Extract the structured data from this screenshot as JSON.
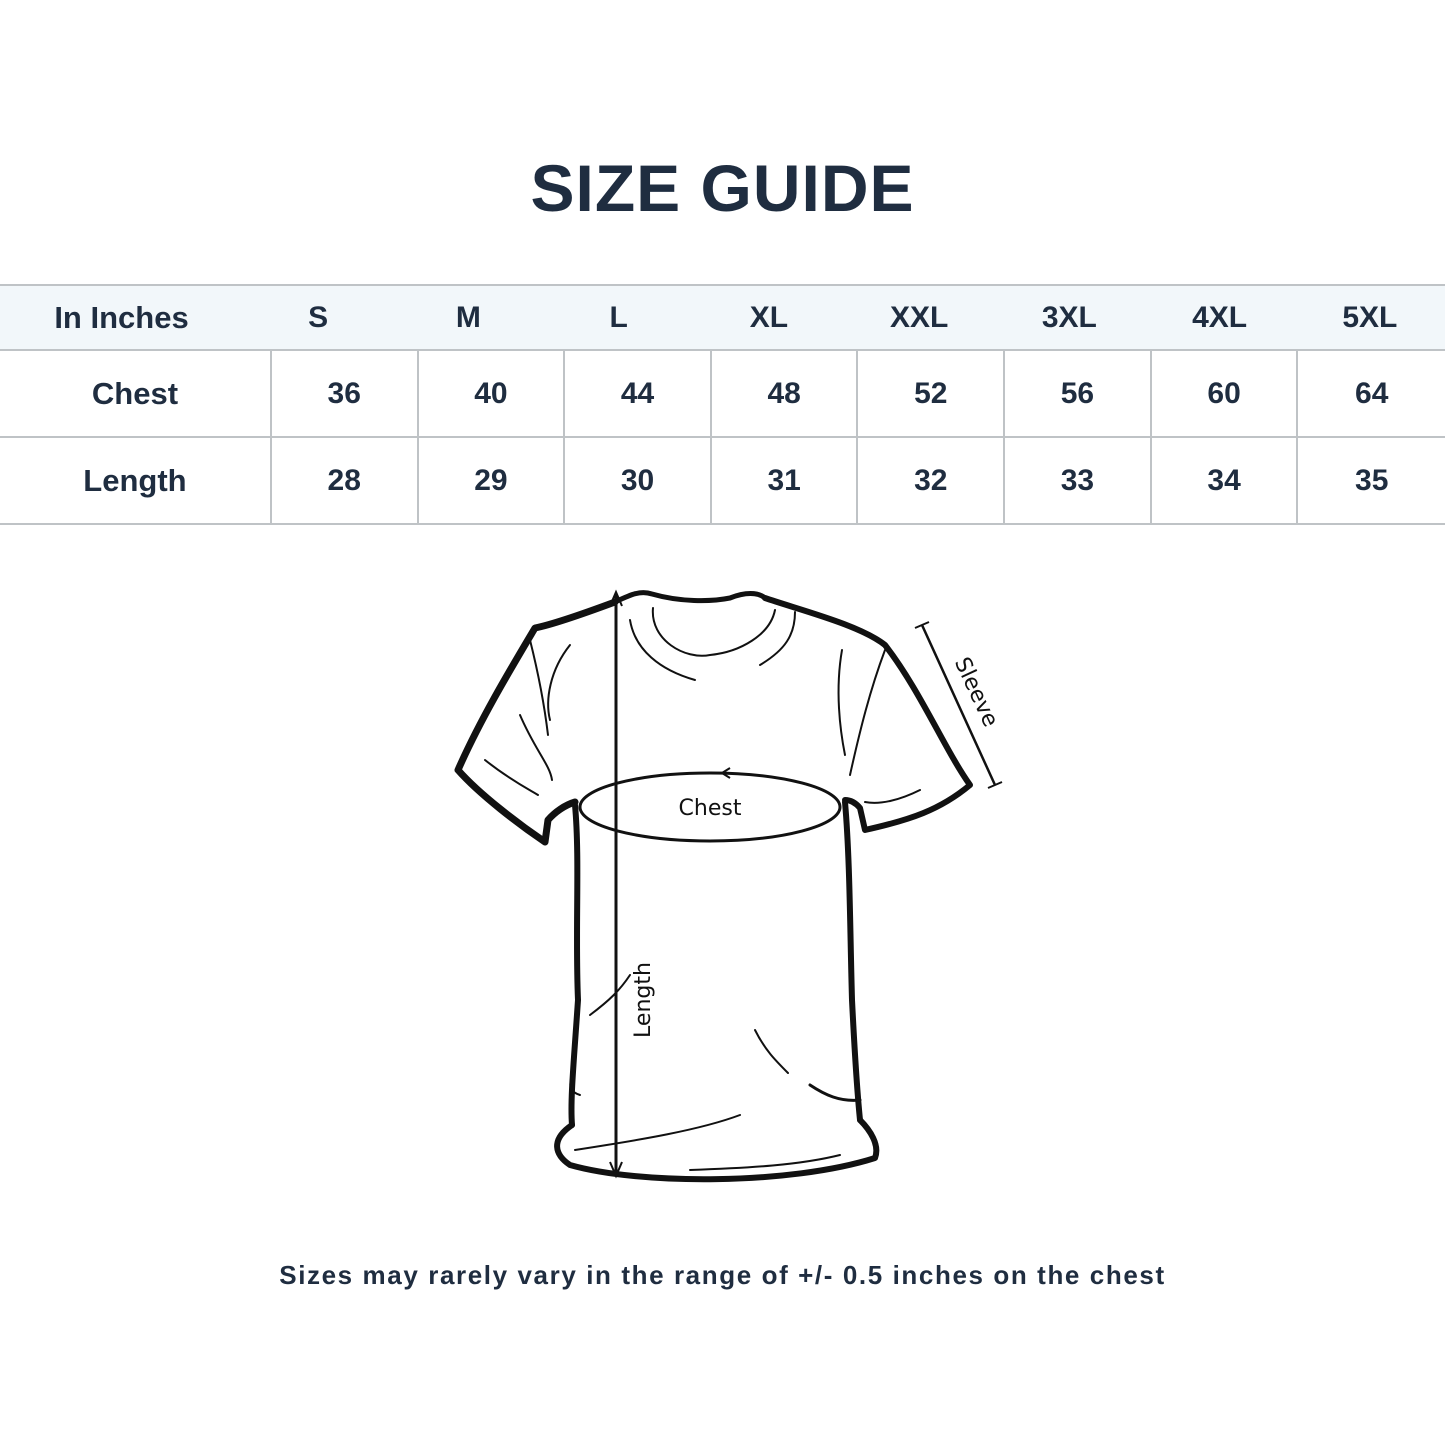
{
  "title": "SIZE GUIDE",
  "table": {
    "header": [
      "In Inches",
      "S",
      "M",
      "L",
      "XL",
      "XXL",
      "3XL",
      "4XL",
      "5XL"
    ],
    "rows": [
      {
        "label": "Chest",
        "values": [
          "36",
          "40",
          "44",
          "48",
          "52",
          "56",
          "60",
          "64"
        ]
      },
      {
        "label": "Length",
        "values": [
          "28",
          "29",
          "30",
          "31",
          "32",
          "33",
          "34",
          "35"
        ]
      }
    ]
  },
  "diagram": {
    "chest_label": "Chest",
    "length_label": "Length",
    "sleeve_label": "Sleeve"
  },
  "note": "Sizes may rarely vary in the range of +/- 0.5 inches on the chest",
  "colors": {
    "text": "#1f2d40",
    "header_bg": "#f2f7fa",
    "border": "#bfc3c6"
  }
}
